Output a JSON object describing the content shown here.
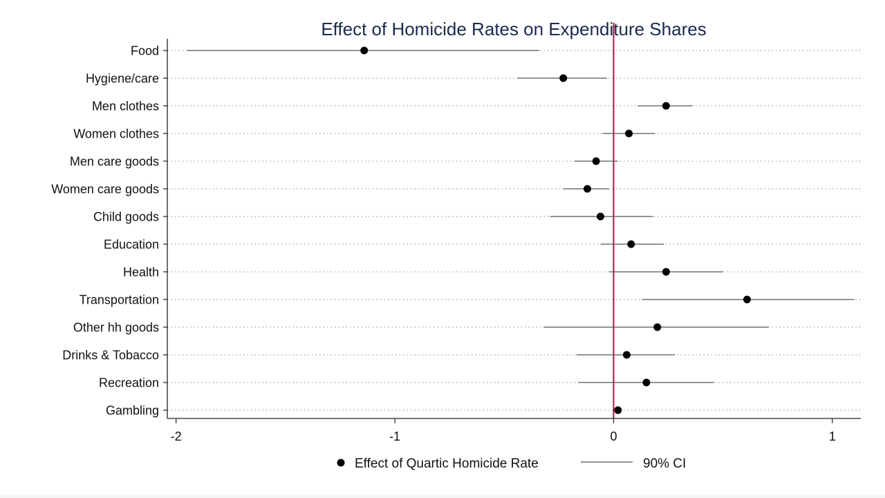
{
  "chart_data": {
    "type": "scatter",
    "subtype": "coefficient-plot",
    "title": "Effect of Homicide Rates on Expenditure Shares",
    "xlabel": "",
    "ylabel": "",
    "xlim": [
      -2.04,
      1.13
    ],
    "xticks": [
      -2,
      -1,
      0,
      1
    ],
    "xtick_labels": [
      "-2",
      "-1",
      "0",
      "1"
    ],
    "reference_line": {
      "x": 0,
      "color": "#9b1b3c"
    },
    "grid": "horizontal dotted",
    "categories": [
      "Food",
      "Hygiene/care",
      "Men clothes",
      "Women clothes",
      "Men care goods",
      "Women care goods",
      "Child goods",
      "Education",
      "Health",
      "Transportation",
      "Other hh goods",
      "Drinks & Tobacco",
      "Recreation",
      "Gambling"
    ],
    "series": [
      {
        "name": "Effect of Quartic Homicide Rate",
        "values": [
          -1.14,
          -0.23,
          0.24,
          0.07,
          -0.08,
          -0.12,
          -0.06,
          0.08,
          0.24,
          0.61,
          0.2,
          0.06,
          0.15,
          0.02
        ]
      },
      {
        "name": "90% CI lower",
        "values": [
          -1.95,
          -0.44,
          0.11,
          -0.05,
          -0.18,
          -0.23,
          -0.29,
          -0.06,
          -0.02,
          0.13,
          -0.32,
          -0.17,
          -0.16,
          0.02
        ]
      },
      {
        "name": "90% CI upper",
        "values": [
          -0.34,
          -0.03,
          0.36,
          0.19,
          0.02,
          -0.02,
          0.18,
          0.23,
          0.5,
          1.1,
          0.71,
          0.28,
          0.46,
          0.02
        ]
      }
    ],
    "legend": {
      "placement": "bottom",
      "entries": [
        {
          "label": "Effect of Quartic Homicide Rate",
          "marker": "circle"
        },
        {
          "label": "90% CI",
          "marker": "line"
        }
      ]
    },
    "colors": {
      "point": "#000000",
      "ci": "#555555",
      "refline": "#9b1b3c",
      "title": "#1a2a4f"
    }
  }
}
